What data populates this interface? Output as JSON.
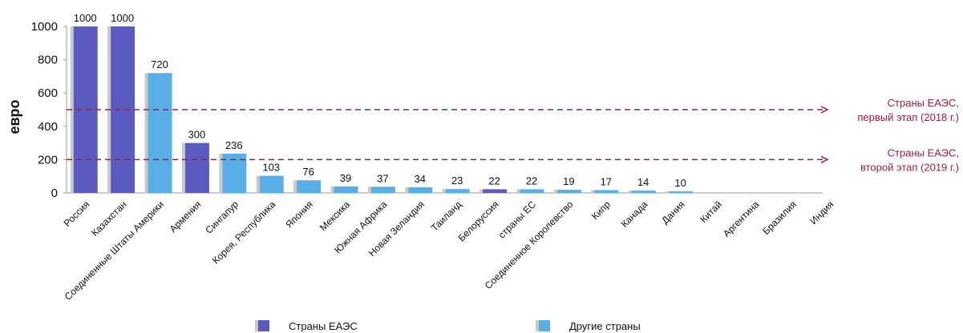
{
  "chart_data": {
    "type": "bar",
    "ylabel": "евро",
    "ylim": [
      0,
      1000
    ],
    "yticks": [
      0,
      200,
      400,
      600,
      800,
      1000
    ],
    "categories": [
      "Россия",
      "Казахстан",
      "Соединенные Штаты Америки",
      "Армения",
      "Сингапур",
      "Корея, Республика",
      "Япония",
      "Мексика",
      "Южная Африка",
      "Новая Зеландия",
      "Таиланд",
      "Белоруссия",
      "страны ЕС",
      "Соединенное Королевство",
      "Кипр",
      "Канада",
      "Дания",
      "Китай",
      "Аргентина",
      "Бразилия",
      "Индия"
    ],
    "values": [
      1000,
      1000,
      720,
      300,
      236,
      103,
      76,
      39,
      37,
      34,
      23,
      22,
      22,
      19,
      17,
      14,
      10,
      null,
      null,
      null,
      null
    ],
    "data_labels": [
      "1000",
      "1000",
      "720",
      "300",
      "236",
      "103",
      "76",
      "39",
      "37",
      "34",
      "23",
      "22",
      "22",
      "19",
      "17",
      "14",
      "10",
      "",
      "",
      "",
      ""
    ],
    "group": [
      "eaes",
      "eaes",
      "other",
      "eaes",
      "other",
      "other",
      "other",
      "other",
      "other",
      "other",
      "other",
      "eaes",
      "other",
      "other",
      "other",
      "other",
      "other",
      "other",
      "other",
      "other",
      "other"
    ],
    "legend": [
      {
        "key": "eaes",
        "label": "Страны ЕАЭС",
        "color": "#5b5bbf"
      },
      {
        "key": "other",
        "label": "Другие страны",
        "color": "#5aaee8"
      }
    ],
    "reference_lines": [
      {
        "value": 500,
        "label_lines": [
          "Страны ЕАЭС,",
          "первый этап (2018 г.)"
        ],
        "color": "#a01d3a"
      },
      {
        "value": 200,
        "label_lines": [
          "Страны ЕАЭС,",
          "второй этап (2019 г.)"
        ],
        "color": "#a01d3a"
      }
    ],
    "grid": false,
    "legend_position": "bottom"
  }
}
